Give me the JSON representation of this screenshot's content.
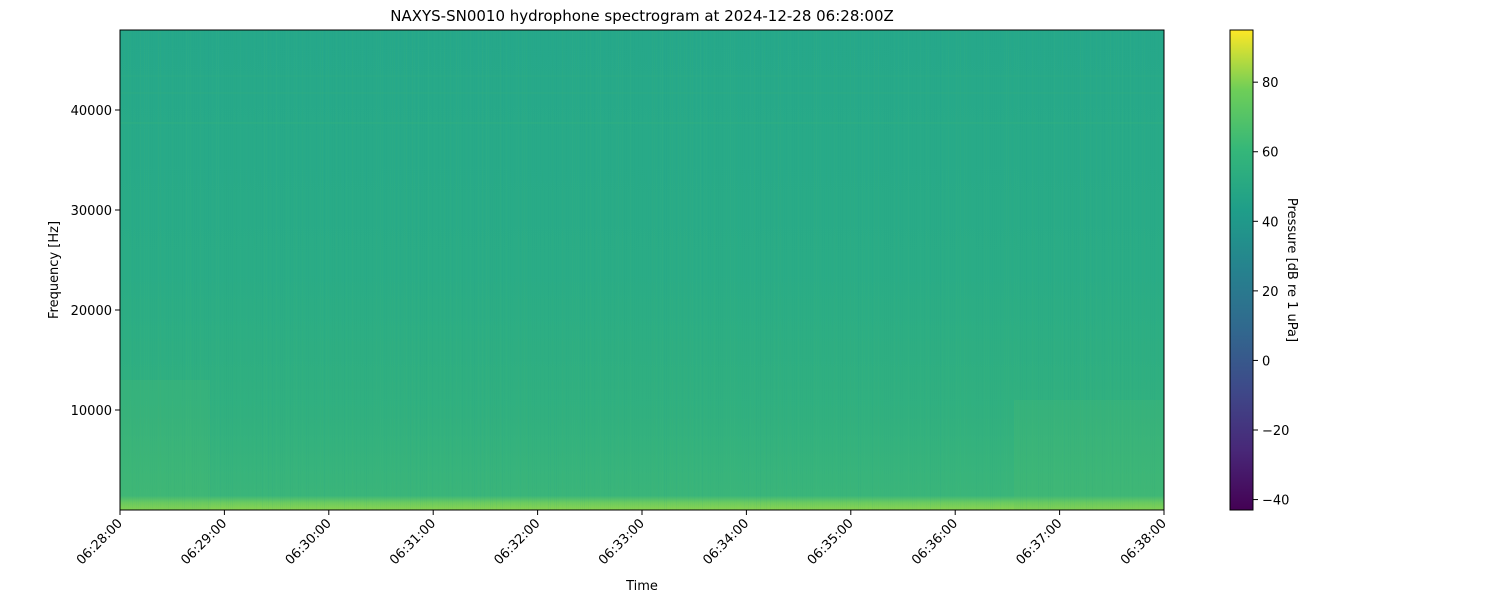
{
  "chart_data": {
    "type": "heatmap",
    "title": "NAXYS-SN0010 hydrophone spectrogram at 2024-12-28 06:28:00Z",
    "xlabel": "Time",
    "ylabel": "Frequency [Hz]",
    "x_ticks": [
      "06:28:00",
      "06:29:00",
      "06:30:00",
      "06:31:00",
      "06:32:00",
      "06:33:00",
      "06:34:00",
      "06:35:00",
      "06:36:00",
      "06:37:00",
      "06:38:00"
    ],
    "xlim": [
      "06:28:00",
      "06:38:00"
    ],
    "y_ticks": [
      10000,
      20000,
      30000,
      40000
    ],
    "ylim": [
      0,
      48000
    ],
    "grid": false,
    "colormap": "viridis",
    "colorbar": {
      "label": "Pressure [dB re 1 uPa]",
      "ticks": [
        -40,
        -20,
        0,
        20,
        40,
        60,
        80
      ],
      "range": [
        -43,
        95
      ]
    },
    "approx_levels_db": [
      {
        "frequency_hz": 0,
        "level": 65
      },
      {
        "frequency_hz": 1000,
        "level": 56
      },
      {
        "frequency_hz": 10000,
        "level": 52
      },
      {
        "frequency_hz": 20000,
        "level": 49
      },
      {
        "frequency_hz": 48000,
        "level": 47
      }
    ]
  }
}
